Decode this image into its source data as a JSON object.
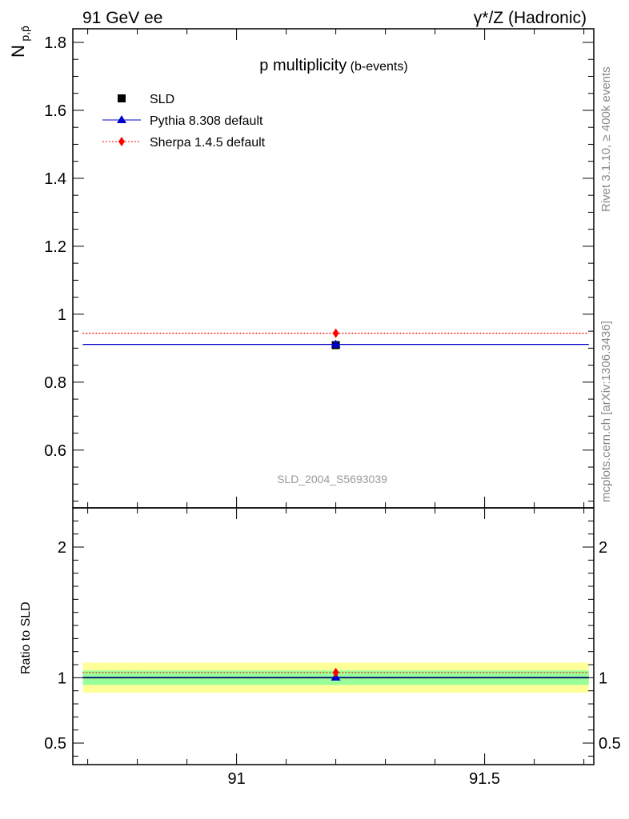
{
  "header": {
    "left": "91 GeV ee",
    "right": "γ*/Z (Hadronic)"
  },
  "side_labels": {
    "rivet": "Rivet 3.1.10, ≥ 400k events",
    "mcplots": "mcplots.cern.ch [arXiv:1306.3436]"
  },
  "chart_data": [
    {
      "type": "scatter",
      "title_main": "p multiplicity",
      "title_sub": "(b-events)",
      "ylabel": "N",
      "ylabel_sub": "p,p̄",
      "xlim": [
        90.67,
        91.72
      ],
      "ylim": [
        0.43,
        1.84
      ],
      "yticks": [
        0.6,
        0.8,
        1,
        1.2,
        1.4,
        1.6,
        1.8
      ],
      "ytick_labels": [
        "0.6",
        "0.8",
        "1",
        "1.2",
        "1.4",
        "1.6",
        "1.8"
      ],
      "watermark": "SLD_2004_S5693039",
      "legend": [
        "SLD",
        "Pythia 8.308 default",
        "Sherpa 1.4.5 default"
      ],
      "legend_position": "top-left",
      "series": [
        {
          "name": "SLD",
          "marker": "square",
          "color": "#000000",
          "x": [
            91.2
          ],
          "y": [
            0.909
          ]
        },
        {
          "name": "Pythia 8.308 default",
          "marker": "triangle",
          "line": "solid",
          "color": "#0000cc",
          "x": [
            91.2
          ],
          "y": [
            0.911
          ],
          "xrange": [
            90.69,
            91.71
          ]
        },
        {
          "name": "Sherpa 1.4.5 default",
          "marker": "diamond",
          "line": "dotted",
          "color": "#ff0000",
          "x": [
            91.2
          ],
          "y": [
            0.944
          ],
          "xrange": [
            90.69,
            91.71
          ]
        }
      ]
    },
    {
      "type": "scatter",
      "ylabel": "Ratio to SLD",
      "xlim": [
        90.67,
        91.72
      ],
      "ylim": [
        0.335,
        2.3
      ],
      "yticks": [
        0.5,
        1,
        2
      ],
      "ytick_labels": [
        "0.5",
        "1",
        "2"
      ],
      "xticks": [
        91,
        91.5
      ],
      "xtick_labels": [
        "91",
        "91.5"
      ],
      "band_inner": [
        0.945,
        1.055
      ],
      "band_outer": [
        0.885,
        1.115
      ],
      "series": [
        {
          "name": "SLD",
          "color": "#000000",
          "x": [
            91.2
          ],
          "y": [
            1.0
          ]
        },
        {
          "name": "Pythia 8.308 default",
          "marker": "triangle",
          "color": "#0000cc",
          "x": [
            91.2
          ],
          "y": [
            1.003
          ]
        },
        {
          "name": "Sherpa 1.4.5 default",
          "marker": "diamond",
          "color": "#ff0000",
          "x": [
            91.2
          ],
          "y": [
            1.04
          ]
        }
      ]
    }
  ]
}
